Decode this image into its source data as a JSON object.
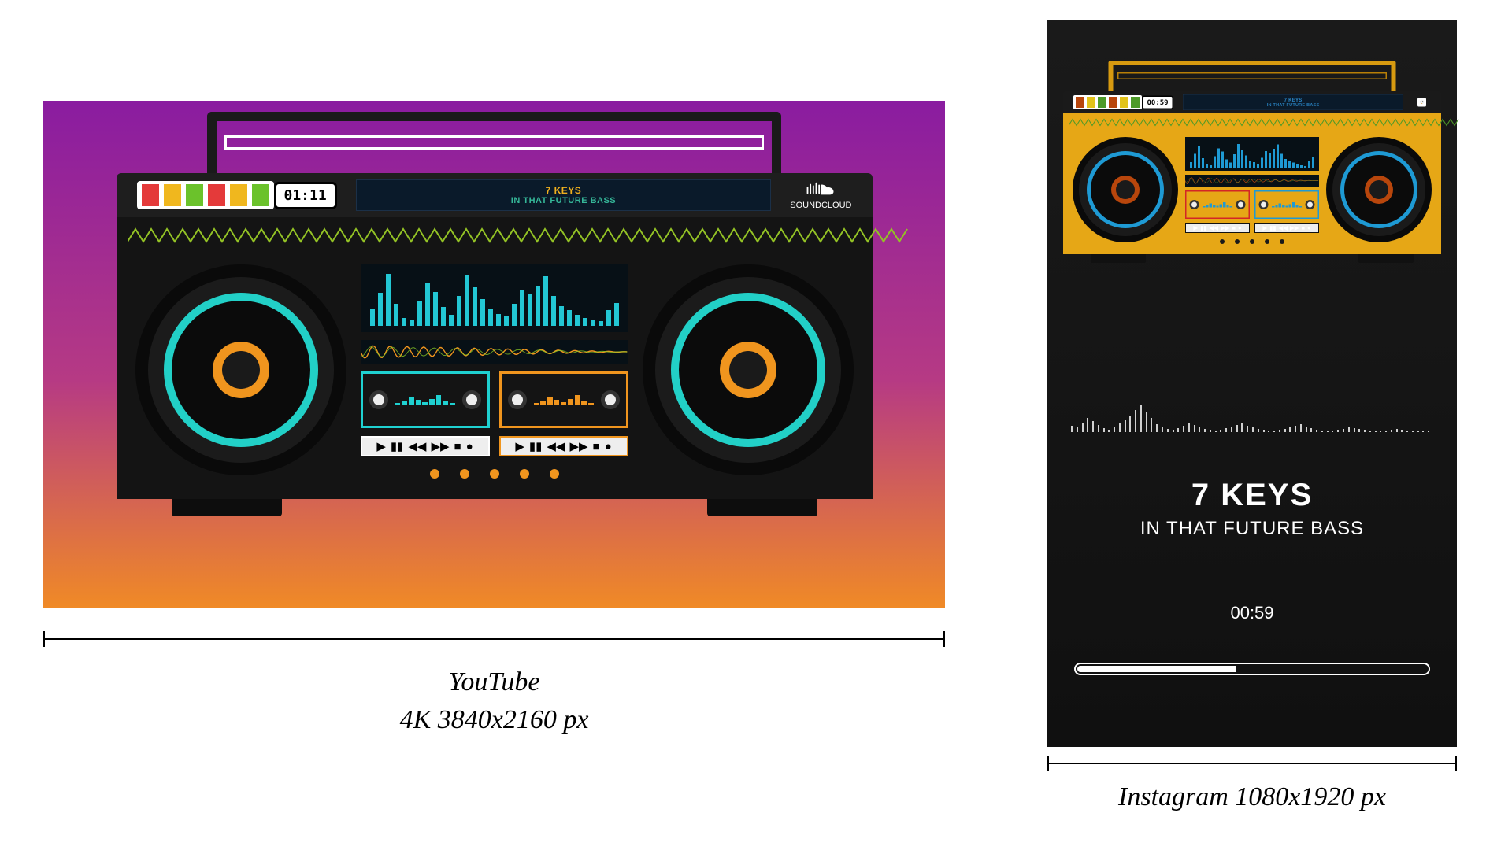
{
  "track": {
    "artist": "7 KEYS",
    "title": "IN THAT FUTURE BASS"
  },
  "youtube_panel": {
    "clock": "01:11",
    "display_artist": "7 KEYS",
    "display_title": "IN THAT FUTURE BASS",
    "brand_label": "SOUNDCLOUD",
    "gradient": {
      "top": "#8a1ca0",
      "mid": "#b63a84",
      "bot": "#f08a26"
    },
    "caption_line1": "YouTube",
    "caption_line2": "4K 3840x2160 px",
    "boombox_colors": {
      "body": "#141414",
      "panel_dark": "#1e1e1e",
      "handle": "#1a1a1a",
      "handle_inner": "#ffffff",
      "accent_cyan": "#1fd1d1",
      "accent_orange": "#f0951e",
      "accent_green": "#86c626",
      "accent_pink": "#e03470",
      "disp_text": "#f0b01e",
      "disp_sub_text": "#3ac8a5",
      "eq_col": "#23c7d4",
      "zigzag": "#93c225",
      "dot": "#f0951e",
      "foot": "#0d0d0d"
    },
    "equalizer_bars": [
      30,
      60,
      95,
      40,
      15,
      10,
      45,
      78,
      62,
      34,
      20,
      55,
      92,
      70,
      48,
      30,
      22,
      18,
      40,
      66,
      58,
      72,
      90,
      55,
      36,
      28,
      20,
      14,
      10,
      8,
      28,
      42
    ],
    "vu_colors_left": [
      "#e43a3a",
      "#f0b71e",
      "#6bc22b"
    ],
    "vu_colors_right": [
      "#e43a3a",
      "#f0b71e",
      "#6bc22b"
    ],
    "cassette_left": {
      "border": "#1fd1d1",
      "bar": "#1fd1d1"
    },
    "cassette_right": {
      "border": "#f0951e",
      "bar": "#f0951e"
    },
    "controls_border_left": "#ffffff",
    "controls_border_right": "#f0951e",
    "speaker_rings": [
      {
        "size": 268,
        "color": "#0a0a0a"
      },
      {
        "size": 236,
        "color": "#1b1b1b"
      },
      {
        "size": 196,
        "color": "#22d0c7"
      },
      {
        "size": 176,
        "color": "#0b0b0b"
      },
      {
        "size": 72,
        "color": "#f0951e"
      },
      {
        "size": 48,
        "color": "#1a1a1a"
      }
    ]
  },
  "instagram_panel": {
    "clock": "00:59",
    "display_artist": "7 KEYS",
    "display_title": "IN THAT FUTURE BASS",
    "ig_time_text": "00:59",
    "progress_pct": 45,
    "caption": "Instagram  1080x1920 px",
    "background": {
      "top": "#1a1a1a",
      "bot": "#101010"
    },
    "title_large": "7 KEYS",
    "subtitle_large": "IN THAT FUTURE BASS",
    "boombox_colors": {
      "body": "#e6a716",
      "panel_dark": "#1a1a1a",
      "handle": "#d79a10",
      "handle_inner": "#b87f07",
      "accent_cyan": "#1e9ad4",
      "accent_orange": "#b8460c",
      "accent_green": "#4d9a28",
      "accent_pink": "#6e6e6e",
      "disp_text": "#2a86c7",
      "disp_sub_text": "#2a86c7",
      "eq_col": "#1e9ad4",
      "zigzag": "#4d9a28",
      "dot": "#1a1a1a",
      "foot": "#111111"
    },
    "equalizer_bars": [
      20,
      50,
      80,
      35,
      12,
      8,
      42,
      70,
      58,
      30,
      18,
      48,
      86,
      64,
      44,
      26,
      20,
      14,
      36,
      60,
      52,
      68,
      84,
      50,
      32,
      24,
      18,
      12,
      8,
      6,
      24,
      38
    ],
    "vu_colors_left": [
      "#b8460c",
      "#e2c31a",
      "#4d9a28"
    ],
    "vu_colors_right": [
      "#b8460c",
      "#e2c31a",
      "#4d9a28"
    ],
    "cassette_left": {
      "border": "#d32626",
      "bar": "#1e9ad4"
    },
    "cassette_right": {
      "border": "#1e9ad4",
      "bar": "#1e9ad4"
    },
    "controls_border_left": "#111111",
    "controls_border_right": "#111111",
    "speaker_rings": [
      {
        "size": 268,
        "color": "#0a0a0a"
      },
      {
        "size": 236,
        "color": "#1a1a1a"
      },
      {
        "size": 196,
        "color": "#1e9ad4"
      },
      {
        "size": 176,
        "color": "#0b0b0b"
      },
      {
        "size": 72,
        "color": "#b8460c"
      },
      {
        "size": 48,
        "color": "#1a1a1a"
      }
    ],
    "wave_bars": [
      8,
      6,
      12,
      18,
      14,
      9,
      5,
      3,
      7,
      11,
      15,
      20,
      28,
      34,
      26,
      18,
      10,
      6,
      4,
      3,
      5,
      8,
      12,
      9,
      6,
      4,
      3,
      2,
      3,
      5,
      7,
      9,
      11,
      8,
      6,
      4,
      3,
      2,
      2,
      3,
      4,
      6,
      8,
      10,
      7,
      5,
      3,
      2,
      2,
      2,
      3,
      4,
      6,
      5,
      4,
      3,
      2,
      2,
      2,
      2,
      3,
      4,
      3,
      2,
      2,
      2,
      2,
      2
    ]
  }
}
